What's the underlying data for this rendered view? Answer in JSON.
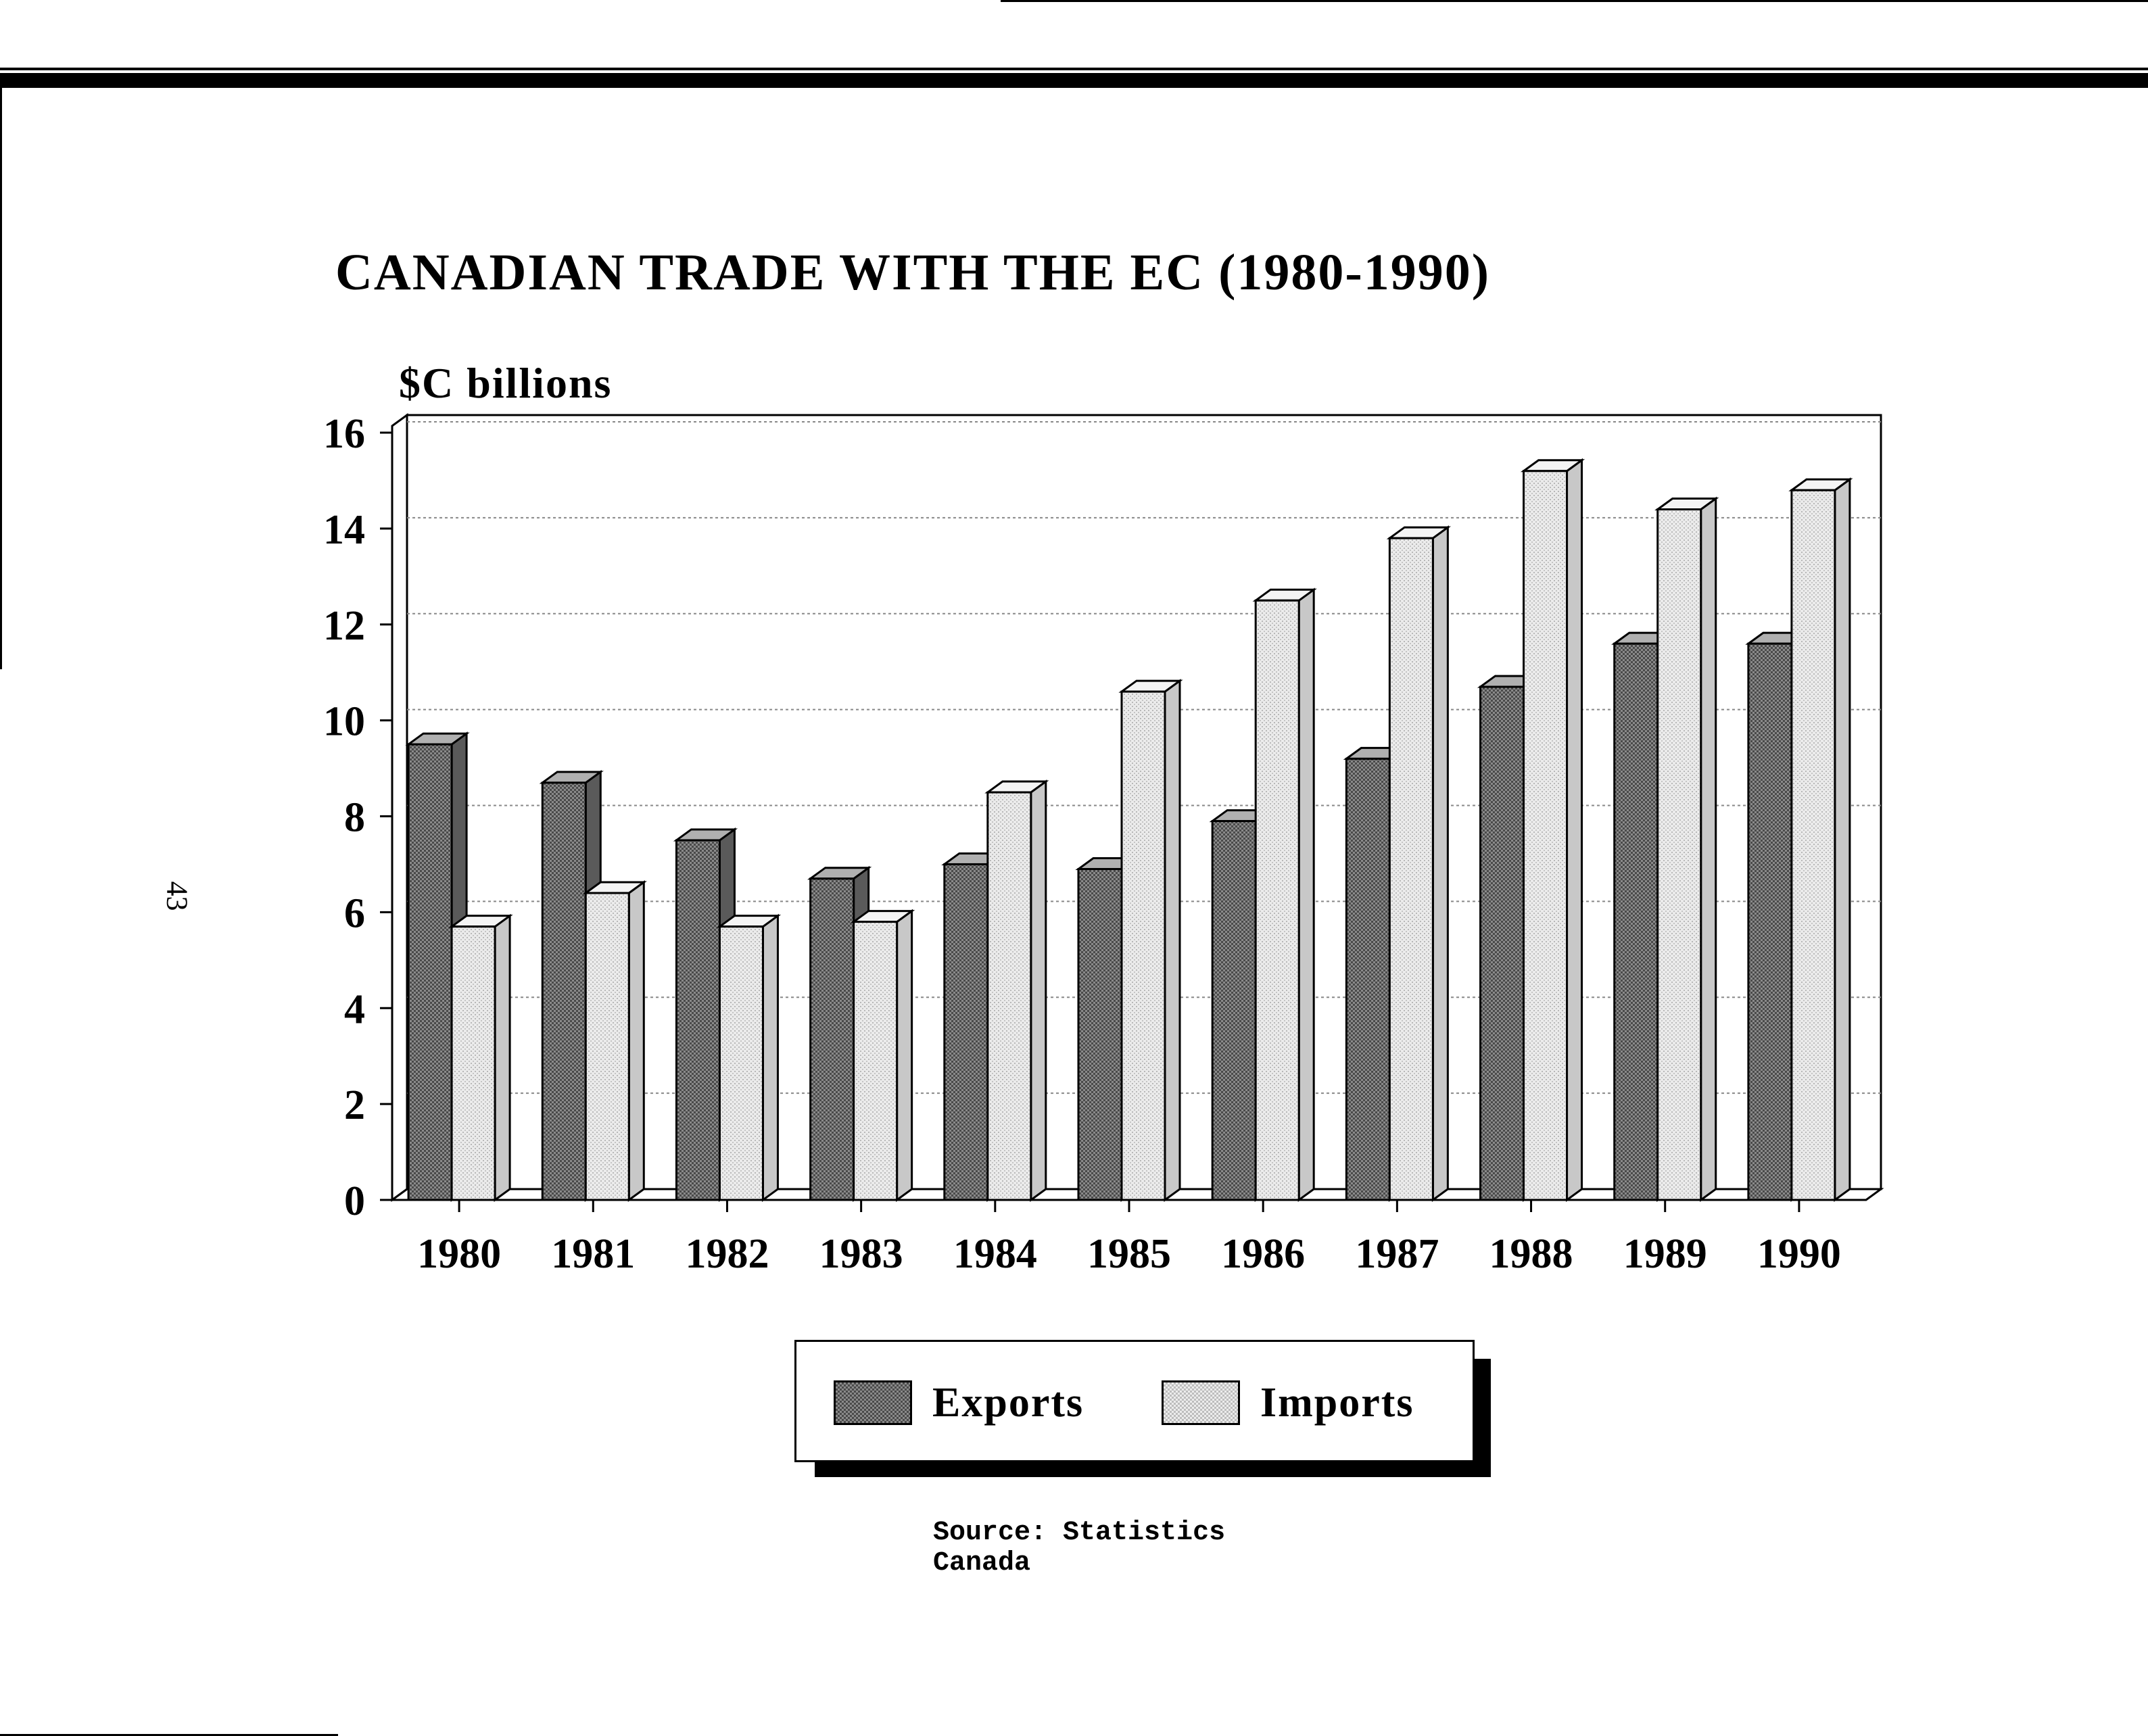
{
  "page": {
    "page_number": "43",
    "source": "Source: Statistics Canada"
  },
  "chart_data": {
    "type": "bar",
    "title": "CANADIAN TRADE WITH THE EC (1980-1990)",
    "ylabel": "$C billions",
    "xlabel": "",
    "categories": [
      "1980",
      "1981",
      "1982",
      "1983",
      "1984",
      "1985",
      "1986",
      "1987",
      "1988",
      "1989",
      "1990"
    ],
    "series": [
      {
        "name": "Exports",
        "values": [
          9.5,
          8.7,
          7.5,
          6.7,
          7.0,
          6.9,
          7.9,
          9.2,
          10.7,
          11.6,
          11.6
        ],
        "color": "#6f6f6f"
      },
      {
        "name": "Imports",
        "values": [
          5.7,
          6.4,
          5.7,
          5.8,
          8.5,
          10.6,
          12.5,
          13.8,
          15.2,
          14.4,
          14.8
        ],
        "color": "#d9d9d9"
      }
    ],
    "yticks": [
      "0",
      "2",
      "4",
      "6",
      "8",
      "10",
      "12",
      "14",
      "16"
    ],
    "ylim": [
      0,
      16
    ],
    "grid": true,
    "legend": "bottom-center",
    "style": "3d"
  }
}
